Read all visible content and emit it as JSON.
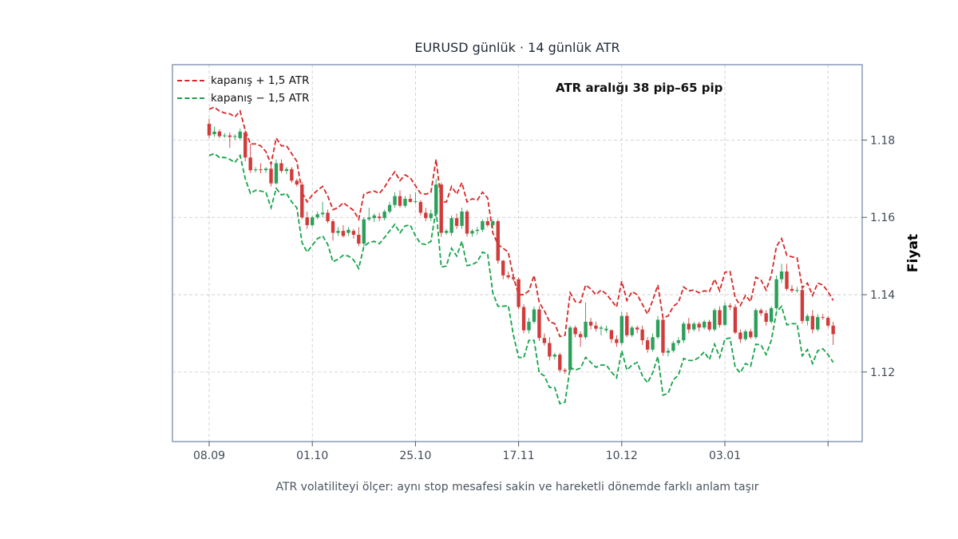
{
  "chart_data": {
    "type": "candlestick",
    "title": "EURUSD günlük · 14 günlük ATR",
    "ylabel": "Fiyat",
    "caption": "ATR volatiliteyi ölçer: aynı stop mesafesi sakin ve hareketli dönemde farklı anlam taşır",
    "annotation": "ATR aralığı 38 pip–65 pip",
    "legend": {
      "placement": "top-left",
      "upper_label": "kapanış + 1,5 ATR",
      "lower_label": "kapanış − 1,5 ATR"
    },
    "colors": {
      "up": "#2ca05a",
      "down": "#d13b3b",
      "upper_band": "#d62728",
      "lower_band": "#16a34a",
      "frame": "#8a9bb5",
      "grid": "#c8c8c8"
    },
    "x_ticks": [
      "08.09",
      "01.10",
      "25.10",
      "17.11",
      "10.12",
      "03.01",
      ""
    ],
    "y_ticks": [
      1.12,
      1.14,
      1.16,
      1.18
    ],
    "ylim": [
      1.102,
      1.1995
    ],
    "grid": true,
    "ohlc": [
      [
        1.1842,
        1.1855,
        1.1805,
        1.1812
      ],
      [
        1.1815,
        1.1835,
        1.1808,
        1.1822
      ],
      [
        1.1822,
        1.1828,
        1.1805,
        1.181
      ],
      [
        1.1811,
        1.1818,
        1.1806,
        1.1812
      ],
      [
        1.1812,
        1.182,
        1.178,
        1.1808
      ],
      [
        1.1808,
        1.1815,
        1.18,
        1.181
      ],
      [
        1.1805,
        1.183,
        1.18,
        1.1822
      ],
      [
        1.182,
        1.1825,
        1.1745,
        1.1755
      ],
      [
        1.1755,
        1.179,
        1.1715,
        1.1722
      ],
      [
        1.1722,
        1.173,
        1.1716,
        1.1724
      ],
      [
        1.1724,
        1.174,
        1.1714,
        1.1722
      ],
      [
        1.1722,
        1.173,
        1.1715,
        1.1726
      ],
      [
        1.1726,
        1.1735,
        1.168,
        1.1688
      ],
      [
        1.1688,
        1.175,
        1.1685,
        1.174
      ],
      [
        1.174,
        1.175,
        1.1715,
        1.172
      ],
      [
        1.172,
        1.173,
        1.1712,
        1.1725
      ],
      [
        1.1725,
        1.173,
        1.169,
        1.1695
      ],
      [
        1.1695,
        1.17,
        1.168,
        1.1685
      ],
      [
        1.1685,
        1.1692,
        1.1595,
        1.16
      ],
      [
        1.16,
        1.1615,
        1.157,
        1.158
      ],
      [
        1.158,
        1.1605,
        1.1575,
        1.16
      ],
      [
        1.16,
        1.1615,
        1.1595,
        1.1608
      ],
      [
        1.1608,
        1.164,
        1.16,
        1.1612
      ],
      [
        1.1612,
        1.162,
        1.1585,
        1.159
      ],
      [
        1.159,
        1.1595,
        1.154,
        1.156
      ],
      [
        1.156,
        1.1575,
        1.1552,
        1.1565
      ],
      [
        1.1565,
        1.158,
        1.1548,
        1.1552
      ],
      [
        1.156,
        1.1575,
        1.1552,
        1.1568
      ],
      [
        1.1565,
        1.157,
        1.1545,
        1.1555
      ],
      [
        1.1555,
        1.1575,
        1.1525,
        1.1532
      ],
      [
        1.1532,
        1.16,
        1.1525,
        1.1595
      ],
      [
        1.1595,
        1.1625,
        1.159,
        1.16
      ],
      [
        1.1598,
        1.161,
        1.1588,
        1.1605
      ],
      [
        1.1602,
        1.1612,
        1.159,
        1.1598
      ],
      [
        1.1598,
        1.162,
        1.1592,
        1.1615
      ],
      [
        1.1615,
        1.164,
        1.161,
        1.1632
      ],
      [
        1.1632,
        1.1665,
        1.1625,
        1.1655
      ],
      [
        1.1655,
        1.167,
        1.1625,
        1.163
      ],
      [
        1.163,
        1.1655,
        1.1625,
        1.1648
      ],
      [
        1.1648,
        1.166,
        1.1638,
        1.164
      ],
      [
        1.164,
        1.1665,
        1.1635,
        1.1642
      ],
      [
        1.164,
        1.1645,
        1.1605,
        1.1612
      ],
      [
        1.1612,
        1.1625,
        1.159,
        1.1598
      ],
      [
        1.1598,
        1.162,
        1.159,
        1.161
      ],
      [
        1.161,
        1.17,
        1.16,
        1.1685
      ],
      [
        1.1685,
        1.169,
        1.155,
        1.156
      ],
      [
        1.156,
        1.157,
        1.1555,
        1.1565
      ],
      [
        1.156,
        1.1605,
        1.1552,
        1.1598
      ],
      [
        1.1598,
        1.161,
        1.157,
        1.1578
      ],
      [
        1.1578,
        1.1625,
        1.157,
        1.1615
      ],
      [
        1.1615,
        1.162,
        1.155,
        1.1558
      ],
      [
        1.1558,
        1.157,
        1.155,
        1.1565
      ],
      [
        1.1565,
        1.1575,
        1.1555,
        1.1568
      ],
      [
        1.1568,
        1.1595,
        1.1562,
        1.159
      ],
      [
        1.159,
        1.16,
        1.1575,
        1.158
      ],
      [
        1.158,
        1.1595,
        1.157,
        1.159
      ],
      [
        1.159,
        1.1595,
        1.148,
        1.1488
      ],
      [
        1.1488,
        1.149,
        1.144,
        1.145
      ],
      [
        1.145,
        1.146,
        1.144,
        1.1445
      ],
      [
        1.1445,
        1.1455,
        1.1435,
        1.144
      ],
      [
        1.144,
        1.1445,
        1.1362,
        1.1368
      ],
      [
        1.1368,
        1.1375,
        1.13,
        1.1308
      ],
      [
        1.1308,
        1.134,
        1.13,
        1.133
      ],
      [
        1.133,
        1.137,
        1.1325,
        1.1362
      ],
      [
        1.1362,
        1.137,
        1.128,
        1.1288
      ],
      [
        1.1288,
        1.13,
        1.1268,
        1.1275
      ],
      [
        1.1275,
        1.129,
        1.123,
        1.124
      ],
      [
        1.124,
        1.125,
        1.1232,
        1.1245
      ],
      [
        1.1245,
        1.125,
        1.12,
        1.1205
      ],
      [
        1.1205,
        1.121,
        1.1195,
        1.1202
      ],
      [
        1.1205,
        1.132,
        1.12,
        1.1315
      ],
      [
        1.1315,
        1.132,
        1.129,
        1.1298
      ],
      [
        1.1298,
        1.1305,
        1.1265,
        1.129
      ],
      [
        1.129,
        1.138,
        1.1285,
        1.133
      ],
      [
        1.133,
        1.134,
        1.131,
        1.132
      ],
      [
        1.132,
        1.133,
        1.1305,
        1.1312
      ],
      [
        1.1312,
        1.132,
        1.1295,
        1.1315
      ],
      [
        1.1308,
        1.132,
        1.1302,
        1.1312
      ],
      [
        1.1308,
        1.131,
        1.1275,
        1.1285
      ],
      [
        1.1285,
        1.1295,
        1.1265,
        1.1275
      ],
      [
        1.1275,
        1.1355,
        1.127,
        1.1345
      ],
      [
        1.1345,
        1.1355,
        1.129,
        1.1295
      ],
      [
        1.1295,
        1.132,
        1.129,
        1.1315
      ],
      [
        1.1315,
        1.132,
        1.13,
        1.131
      ],
      [
        1.131,
        1.132,
        1.127,
        1.1282
      ],
      [
        1.1282,
        1.129,
        1.125,
        1.1258
      ],
      [
        1.1258,
        1.13,
        1.1252,
        1.129
      ],
      [
        1.129,
        1.1345,
        1.1285,
        1.1335
      ],
      [
        1.1335,
        1.134,
        1.1242,
        1.125
      ],
      [
        1.125,
        1.1262,
        1.124,
        1.1255
      ],
      [
        1.1255,
        1.128,
        1.125,
        1.1275
      ],
      [
        1.1275,
        1.129,
        1.1268,
        1.1282
      ],
      [
        1.1282,
        1.133,
        1.1275,
        1.1325
      ],
      [
        1.1325,
        1.134,
        1.13,
        1.131
      ],
      [
        1.131,
        1.133,
        1.1305,
        1.1325
      ],
      [
        1.1325,
        1.133,
        1.1305,
        1.1315
      ],
      [
        1.1315,
        1.1335,
        1.131,
        1.133
      ],
      [
        1.133,
        1.1335,
        1.1305,
        1.131
      ],
      [
        1.131,
        1.1365,
        1.1305,
        1.136
      ],
      [
        1.136,
        1.137,
        1.1315,
        1.1322
      ],
      [
        1.1322,
        1.138,
        1.1318,
        1.1372
      ],
      [
        1.1372,
        1.1378,
        1.136,
        1.1368
      ],
      [
        1.1368,
        1.1375,
        1.1298,
        1.1302
      ],
      [
        1.1302,
        1.131,
        1.1275,
        1.1285
      ],
      [
        1.1285,
        1.131,
        1.128,
        1.1305
      ],
      [
        1.1305,
        1.1312,
        1.1285,
        1.129
      ],
      [
        1.129,
        1.1365,
        1.1285,
        1.136
      ],
      [
        1.136,
        1.1365,
        1.1345,
        1.1352
      ],
      [
        1.1352,
        1.136,
        1.132,
        1.133
      ],
      [
        1.133,
        1.137,
        1.1325,
        1.1365
      ],
      [
        1.1365,
        1.145,
        1.136,
        1.144
      ],
      [
        1.144,
        1.148,
        1.143,
        1.146
      ],
      [
        1.146,
        1.148,
        1.141,
        1.1415
      ],
      [
        1.1415,
        1.1425,
        1.1405,
        1.141
      ],
      [
        1.141,
        1.142,
        1.1405,
        1.1412
      ],
      [
        1.1412,
        1.1418,
        1.1325,
        1.1332
      ],
      [
        1.1332,
        1.135,
        1.132,
        1.1345
      ],
      [
        1.1345,
        1.136,
        1.13,
        1.131
      ],
      [
        1.131,
        1.135,
        1.1305,
        1.1342
      ],
      [
        1.1342,
        1.135,
        1.1335,
        1.134
      ],
      [
        1.134,
        1.1345,
        1.1315,
        1.132
      ],
      [
        1.132,
        1.133,
        1.127,
        1.1298
      ]
    ],
    "upper": [
      1.188,
      1.1885,
      1.1875,
      1.187,
      1.1868,
      1.186,
      1.1875,
      1.1825,
      1.179,
      1.179,
      1.1785,
      1.177,
      1.1738,
      1.1805,
      1.1785,
      1.1785,
      1.1765,
      1.1745,
      1.1665,
      1.164,
      1.1658,
      1.167,
      1.168,
      1.1655,
      1.162,
      1.1625,
      1.1638,
      1.1628,
      1.1618,
      1.1595,
      1.166,
      1.1665,
      1.1668,
      1.1662,
      1.1678,
      1.17,
      1.1718,
      1.1695,
      1.171,
      1.1702,
      1.1682,
      1.1662,
      1.166,
      1.1665,
      1.175,
      1.164,
      1.164,
      1.168,
      1.166,
      1.169,
      1.164,
      1.1648,
      1.1645,
      1.1665,
      1.165,
      1.156,
      1.153,
      1.152,
      1.151,
      1.1445,
      1.14,
      1.14,
      1.141,
      1.145,
      1.138,
      1.1358,
      1.133,
      1.1325,
      1.1292,
      1.1295,
      1.1405,
      1.1382,
      1.138,
      1.1425,
      1.1415,
      1.14,
      1.1412,
      1.1402,
      1.1385,
      1.1368,
      1.1435,
      1.1385,
      1.1408,
      1.14,
      1.1375,
      1.135,
      1.1385,
      1.1425,
      1.134,
      1.1345,
      1.137,
      1.138,
      1.142,
      1.141,
      1.1412,
      1.1405,
      1.141,
      1.1408,
      1.144,
      1.141,
      1.1458,
      1.146,
      1.1392,
      1.1372,
      1.1398,
      1.1382,
      1.1445,
      1.1438,
      1.1412,
      1.145,
      1.1525,
      1.1545,
      1.1502,
      1.1498,
      1.1495,
      1.1418,
      1.143,
      1.1398,
      1.143,
      1.1425,
      1.1408,
      1.1385
    ],
    "lower": [
      1.176,
      1.1765,
      1.1755,
      1.1755,
      1.175,
      1.1742,
      1.176,
      1.17,
      1.1662,
      1.167,
      1.1668,
      1.1665,
      1.1625,
      1.1675,
      1.1658,
      1.1662,
      1.164,
      1.1625,
      1.1535,
      1.151,
      1.1528,
      1.1545,
      1.1552,
      1.153,
      1.1485,
      1.1492,
      1.1502,
      1.15,
      1.149,
      1.1468,
      1.1525,
      1.1535,
      1.1538,
      1.1532,
      1.1548,
      1.1565,
      1.1582,
      1.156,
      1.1578,
      1.158,
      1.1552,
      1.1532,
      1.153,
      1.1538,
      1.162,
      1.1472,
      1.1474,
      1.152,
      1.15,
      1.1538,
      1.1475,
      1.1478,
      1.1485,
      1.151,
      1.1505,
      1.1405,
      1.137,
      1.137,
      1.1372,
      1.1295,
      1.1238,
      1.1237,
      1.1282,
      1.1282,
      1.1198,
      1.119,
      1.116,
      1.116,
      1.1118,
      1.1122,
      1.1212,
      1.1205,
      1.121,
      1.1238,
      1.1225,
      1.1212,
      1.1218,
      1.1218,
      1.12,
      1.1185,
      1.1255,
      1.1205,
      1.1218,
      1.1225,
      1.119,
      1.1172,
      1.1198,
      1.124,
      1.114,
      1.1145,
      1.118,
      1.1192,
      1.1235,
      1.123,
      1.123,
      1.1238,
      1.1252,
      1.1232,
      1.1272,
      1.1238,
      1.1285,
      1.1288,
      1.1212,
      1.1198,
      1.1222,
      1.1215,
      1.1272,
      1.127,
      1.1245,
      1.1282,
      1.1355,
      1.137,
      1.1322,
      1.1325,
      1.1325,
      1.1242,
      1.1258,
      1.1222,
      1.1255,
      1.126,
      1.1245,
      1.1225
    ]
  }
}
